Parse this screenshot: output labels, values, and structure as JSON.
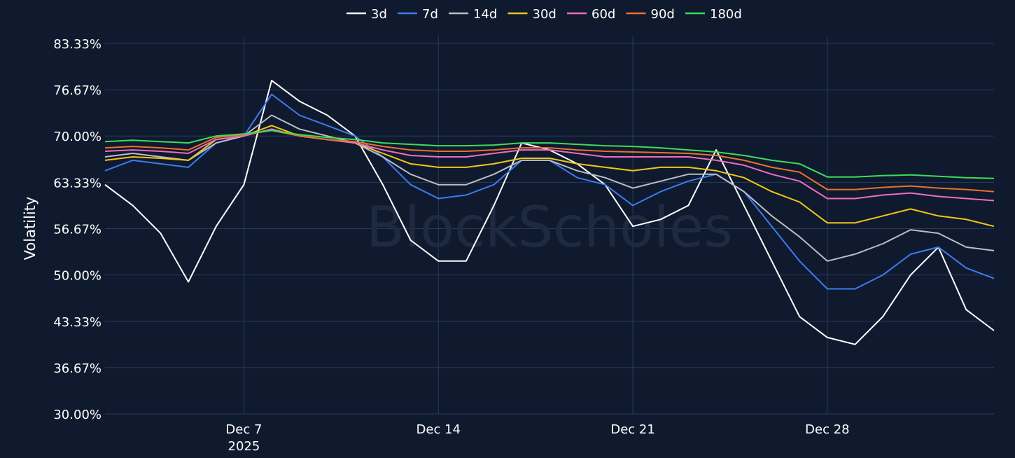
{
  "chart_data": {
    "type": "line",
    "title": "",
    "xlabel": "",
    "ylabel": "Volatility",
    "watermark": "BlockScholes",
    "x_range": [
      "2025-12-02",
      "2026-01-03"
    ],
    "x_ticks": [
      {
        "date": "2025-12-07",
        "label": "Dec 7",
        "sublabel": "2025"
      },
      {
        "date": "2025-12-14",
        "label": "Dec 14",
        "sublabel": ""
      },
      {
        "date": "2025-12-21",
        "label": "Dec 21",
        "sublabel": ""
      },
      {
        "date": "2025-12-28",
        "label": "Dec 28",
        "sublabel": ""
      }
    ],
    "y_ticks": [
      "30.00%",
      "36.67%",
      "43.33%",
      "50.00%",
      "56.67%",
      "63.33%",
      "70.00%",
      "76.67%",
      "83.33%"
    ],
    "ylim": [
      30,
      83.33
    ],
    "grid": true,
    "legend_position": "top-center",
    "series": [
      {
        "name": "3d",
        "color": "#ffffff",
        "x": [
          "2025-12-02",
          "2025-12-03",
          "2025-12-04",
          "2025-12-05",
          "2025-12-06",
          "2025-12-07",
          "2025-12-08",
          "2025-12-09",
          "2025-12-10",
          "2025-12-11",
          "2025-12-12",
          "2025-12-13",
          "2025-12-14",
          "2025-12-15",
          "2025-12-16",
          "2025-12-17",
          "2025-12-18",
          "2025-12-19",
          "2025-12-20",
          "2025-12-21",
          "2025-12-22",
          "2025-12-23",
          "2025-12-24",
          "2025-12-25",
          "2025-12-26",
          "2025-12-27",
          "2025-12-28",
          "2025-12-29",
          "2025-12-30",
          "2025-12-31",
          "2026-01-01",
          "2026-01-02",
          "2026-01-03"
        ],
        "values": [
          63.0,
          60.0,
          56.0,
          49.0,
          57.0,
          63.0,
          78.0,
          75.0,
          73.0,
          70.0,
          63.0,
          55.0,
          52.0,
          52.0,
          60.0,
          69.0,
          68.0,
          66.0,
          63.0,
          57.0,
          58.0,
          60.0,
          68.0,
          60.0,
          52.0,
          44.0,
          41.0,
          40.0,
          44.0,
          50.0,
          54.0,
          45.0,
          42.0
        ]
      },
      {
        "name": "7d",
        "color": "#3d7bf0",
        "x": [
          "2025-12-02",
          "2025-12-03",
          "2025-12-04",
          "2025-12-05",
          "2025-12-06",
          "2025-12-07",
          "2025-12-08",
          "2025-12-09",
          "2025-12-10",
          "2025-12-11",
          "2025-12-12",
          "2025-12-13",
          "2025-12-14",
          "2025-12-15",
          "2025-12-16",
          "2025-12-17",
          "2025-12-18",
          "2025-12-19",
          "2025-12-20",
          "2025-12-21",
          "2025-12-22",
          "2025-12-23",
          "2025-12-24",
          "2025-12-25",
          "2025-12-26",
          "2025-12-27",
          "2025-12-28",
          "2025-12-29",
          "2025-12-30",
          "2025-12-31",
          "2026-01-01",
          "2026-01-02",
          "2026-01-03"
        ],
        "values": [
          65.0,
          66.5,
          66.0,
          65.5,
          69.0,
          70.0,
          76.0,
          73.0,
          71.5,
          70.0,
          67.0,
          63.0,
          61.0,
          61.5,
          63.0,
          66.5,
          66.5,
          64.0,
          63.0,
          60.0,
          62.0,
          63.5,
          64.5,
          62.0,
          57.0,
          52.0,
          48.0,
          48.0,
          50.0,
          53.0,
          54.0,
          51.0,
          49.5
        ]
      },
      {
        "name": "14d",
        "color": "#b9bec6",
        "x": [
          "2025-12-02",
          "2025-12-03",
          "2025-12-04",
          "2025-12-05",
          "2025-12-06",
          "2025-12-07",
          "2025-12-08",
          "2025-12-09",
          "2025-12-10",
          "2025-12-11",
          "2025-12-12",
          "2025-12-13",
          "2025-12-14",
          "2025-12-15",
          "2025-12-16",
          "2025-12-17",
          "2025-12-18",
          "2025-12-19",
          "2025-12-20",
          "2025-12-21",
          "2025-12-22",
          "2025-12-23",
          "2025-12-24",
          "2025-12-25",
          "2025-12-26",
          "2025-12-27",
          "2025-12-28",
          "2025-12-29",
          "2025-12-30",
          "2025-12-31",
          "2026-01-01",
          "2026-01-02",
          "2026-01-03"
        ],
        "values": [
          67.0,
          67.5,
          67.0,
          66.5,
          69.0,
          70.0,
          73.0,
          71.0,
          70.0,
          69.0,
          67.0,
          64.5,
          63.0,
          63.0,
          64.5,
          66.5,
          66.5,
          65.0,
          64.0,
          62.5,
          63.5,
          64.5,
          64.5,
          62.0,
          58.5,
          55.5,
          52.0,
          53.0,
          54.5,
          56.5,
          56.0,
          54.0,
          53.5
        ]
      },
      {
        "name": "30d",
        "color": "#f5c518",
        "x": [
          "2025-12-02",
          "2025-12-03",
          "2025-12-04",
          "2025-12-05",
          "2025-12-06",
          "2025-12-07",
          "2025-12-08",
          "2025-12-09",
          "2025-12-10",
          "2025-12-11",
          "2025-12-12",
          "2025-12-13",
          "2025-12-14",
          "2025-12-15",
          "2025-12-16",
          "2025-12-17",
          "2025-12-18",
          "2025-12-19",
          "2025-12-20",
          "2025-12-21",
          "2025-12-22",
          "2025-12-23",
          "2025-12-24",
          "2025-12-25",
          "2025-12-26",
          "2025-12-27",
          "2025-12-28",
          "2025-12-29",
          "2025-12-30",
          "2025-12-31",
          "2026-01-01",
          "2026-01-02",
          "2026-01-03"
        ],
        "values": [
          66.5,
          67.0,
          66.8,
          66.5,
          69.5,
          70.0,
          71.5,
          70.0,
          69.5,
          69.0,
          67.5,
          66.0,
          65.5,
          65.5,
          66.0,
          66.8,
          66.8,
          66.0,
          65.5,
          65.0,
          65.5,
          65.5,
          65.0,
          64.0,
          62.0,
          60.5,
          57.5,
          57.5,
          58.5,
          59.5,
          58.5,
          58.0,
          57.0
        ]
      },
      {
        "name": "60d",
        "color": "#f06bc2",
        "x": [
          "2025-12-02",
          "2025-12-03",
          "2025-12-04",
          "2025-12-05",
          "2025-12-06",
          "2025-12-07",
          "2025-12-08",
          "2025-12-09",
          "2025-12-10",
          "2025-12-11",
          "2025-12-12",
          "2025-12-13",
          "2025-12-14",
          "2025-12-15",
          "2025-12-16",
          "2025-12-17",
          "2025-12-18",
          "2025-12-19",
          "2025-12-20",
          "2025-12-21",
          "2025-12-22",
          "2025-12-23",
          "2025-12-24",
          "2025-12-25",
          "2025-12-26",
          "2025-12-27",
          "2025-12-28",
          "2025-12-29",
          "2025-12-30",
          "2025-12-31",
          "2026-01-01",
          "2026-01-02",
          "2026-01-03"
        ],
        "values": [
          67.8,
          68.0,
          67.8,
          67.5,
          69.5,
          70.0,
          71.0,
          70.0,
          69.5,
          69.0,
          68.0,
          67.2,
          67.0,
          67.0,
          67.5,
          68.0,
          68.0,
          67.5,
          67.0,
          67.0,
          67.0,
          67.0,
          66.5,
          65.8,
          64.5,
          63.5,
          61.0,
          61.0,
          61.5,
          61.8,
          61.3,
          61.0,
          60.7
        ]
      },
      {
        "name": "90d",
        "color": "#e8722a",
        "x": [
          "2025-12-02",
          "2025-12-03",
          "2025-12-04",
          "2025-12-05",
          "2025-12-06",
          "2025-12-07",
          "2025-12-08",
          "2025-12-09",
          "2025-12-10",
          "2025-12-11",
          "2025-12-12",
          "2025-12-13",
          "2025-12-14",
          "2025-12-15",
          "2025-12-16",
          "2025-12-17",
          "2025-12-18",
          "2025-12-19",
          "2025-12-20",
          "2025-12-21",
          "2025-12-22",
          "2025-12-23",
          "2025-12-24",
          "2025-12-25",
          "2025-12-26",
          "2025-12-27",
          "2025-12-28",
          "2025-12-29",
          "2025-12-30",
          "2025-12-31",
          "2026-01-01",
          "2026-01-02",
          "2026-01-03"
        ],
        "values": [
          68.3,
          68.5,
          68.3,
          68.0,
          69.8,
          70.2,
          70.8,
          70.0,
          69.5,
          69.2,
          68.5,
          68.0,
          67.8,
          67.8,
          68.0,
          68.3,
          68.3,
          68.0,
          67.8,
          67.7,
          67.6,
          67.5,
          67.2,
          66.5,
          65.5,
          64.8,
          62.3,
          62.3,
          62.6,
          62.8,
          62.5,
          62.3,
          62.0
        ]
      },
      {
        "name": "180d",
        "color": "#3ddc5c",
        "x": [
          "2025-12-02",
          "2025-12-03",
          "2025-12-04",
          "2025-12-05",
          "2025-12-06",
          "2025-12-07",
          "2025-12-08",
          "2025-12-09",
          "2025-12-10",
          "2025-12-11",
          "2025-12-12",
          "2025-12-13",
          "2025-12-14",
          "2025-12-15",
          "2025-12-16",
          "2025-12-17",
          "2025-12-18",
          "2025-12-19",
          "2025-12-20",
          "2025-12-21",
          "2025-12-22",
          "2025-12-23",
          "2025-12-24",
          "2025-12-25",
          "2025-12-26",
          "2025-12-27",
          "2025-12-28",
          "2025-12-29",
          "2025-12-30",
          "2025-12-31",
          "2026-01-01",
          "2026-01-02",
          "2026-01-03"
        ],
        "values": [
          69.2,
          69.4,
          69.2,
          69.0,
          70.0,
          70.3,
          70.8,
          70.2,
          69.8,
          69.5,
          69.0,
          68.8,
          68.6,
          68.6,
          68.7,
          69.0,
          69.0,
          68.8,
          68.6,
          68.5,
          68.3,
          68.0,
          67.7,
          67.2,
          66.5,
          66.0,
          64.1,
          64.1,
          64.3,
          64.4,
          64.2,
          64.0,
          63.9
        ]
      }
    ]
  }
}
